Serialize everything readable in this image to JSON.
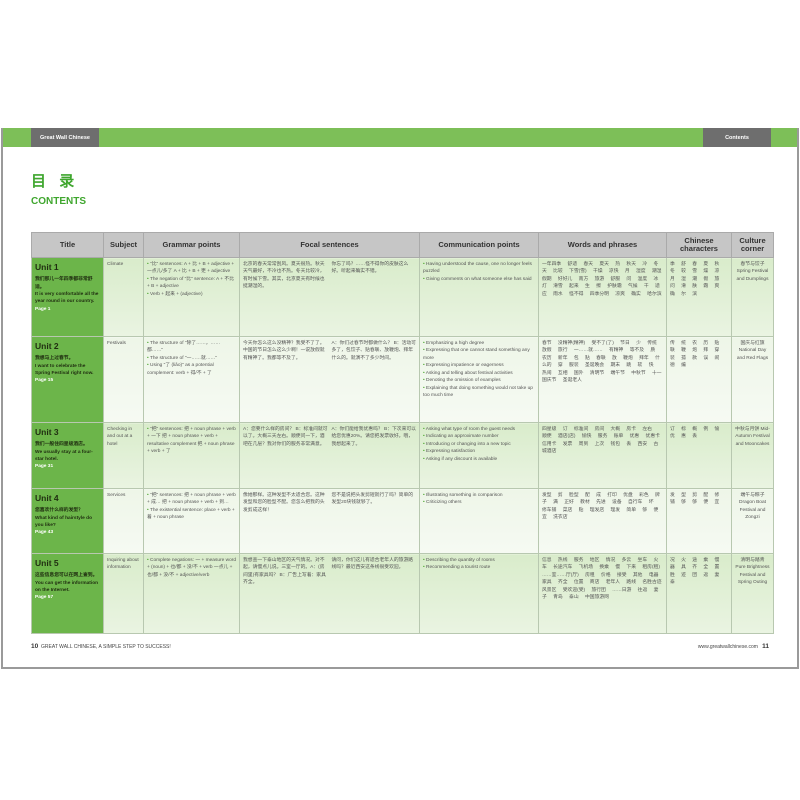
{
  "header": {
    "left_tab": "Great Wall Chinese",
    "right_tab": "Contents"
  },
  "title_cn": "目 录",
  "title_en": "CONTENTS",
  "columns": [
    "Title",
    "Subject",
    "Grammar points",
    "Focal  sentences",
    "Communication points",
    "Words and phrases",
    "Chinese characters",
    "Culture corner"
  ],
  "units": [
    {
      "unit": "Unit 1",
      "cn": "我们那儿一年四季都非常舒适。",
      "en": "It is very comfortable all the year round in our country.",
      "page": "Page 1",
      "subject": "Climate",
      "grammar": [
        "\"比\" sentences: A + 比 + B + adjective + 一点儿/多了 A + 比 + B + 更 + adjective",
        "The negation of \"比\" sentence: A + 不比 + B + adjective",
        "Verb + 起来 + (adjective)"
      ],
      "focal_a": "北京的春天常常刮风。夏天很热。秋天天气最好，不冷也不热。冬天比较冷，有时候下雪。其实，北京夏天有时候也挺潮湿的。",
      "focal_b": "你忘了吗？……怪不得你的皮肤这么好。听起来确实不错。",
      "comm": [
        "Having understood the cause, one no longer feels puzzled",
        "Giving comments on what someone else has said"
      ],
      "words": "一年四季 舒适 春天 夏天 热 秋天 冷 冬天 比较 下雪(雪) 干燥 凉快 月 湿度 潮湿 假期 好好儿 南方 旅游 舒服 问 温度 冰灯 滑雪 起来 生 擦 护肤霜 气候 干 适应 雨水 怪不得 四季分明 凉爽 确实 哈尔滨",
      "chars": "季 舒 春 夏 秋 冬 较 雪 燥 凉 月 湿 潮 假 旅 问 滑 肤 霜 爽 确 尔 滨",
      "culture": "春节与饺子 Spring Festival and Dumplings"
    },
    {
      "unit": "Unit 2",
      "cn": "我想马上过春节。",
      "en": "I want to celebrate the Spring Festival right now.",
      "page": "Page 15",
      "subject": "Festivals",
      "grammar": [
        "The structure of \"除了……，……都……\"",
        "The structure of \"一……就……\"",
        "Using \"了 (liǎo)\" as a potential complement: verb + 得/不 + 了"
      ],
      "focal_a": "今天你怎么这么没精神？我受不了了。中国的节日怎么这么少啊！一说放假就有精神了。我都等不及了。",
      "focal_b": "A：你们过春节时都做什么？ B：活动可多了，包饺子、贴春联、放鞭炮、拜年什么的。就演不了多少时间。",
      "comm": [
        "Emphasizing a high degree",
        "Expressing that one cannot stand something any more",
        "Expressing impatience or eagerness",
        "Asking and telling about festival activities",
        "Denoting the omission of examples",
        "Explaining that doing something would not take up too much time"
      ],
      "words": "春节 没精神(精神) 受不了(了) 节日 少 传统 放假 旅行 一……就…… 有精神 等不及 质 农历 新年 包 贴 春联 放 鞭炮 拜年 什么的 穿 服装 圣诞晚会 期末 跳 软 快 热闹 互相 国外 清明节 端午节 中秋节 十一国庆节 圣诞老人",
      "chars": "传 统 农 历 贴 联 鞭 炮 拜 穿 装 孤 款 误 闹 德 编",
      "culture": "国庆与红旗 National Day and Red Flags"
    },
    {
      "unit": "Unit 3",
      "cn": "我们一般住四星级酒店。",
      "en": "We usually stay at a four-star hotel.",
      "page": "Page 31",
      "subject": "Checking in and out at a hotel",
      "grammar": [
        "\"把\" sentences: 把 + noun phrase + verb + 一下 把 + noun phrase + verb + resultative complement 把 + noun phrase + verb + 了"
      ],
      "focal_a": "A：您要什么样的房间？ B：标准间就可以了。大概三天左右。顺便问一下，酒吧在几层？我对你们的服务非常满意。",
      "focal_b": "A：你们能给我优惠吗？ B：下次来可以给您优惠20%。请您把发票收好。哦，我想起来了。",
      "comm": [
        "Asking what type of room the guest needs",
        "Indicating an approximate number",
        "Introducing or changing into a new topic",
        "Expressing satisfaction",
        "Asking if any discount is available"
      ],
      "words": "四星级 订 标准间 房间 大概 房卡 左右 顺便 酒店(店) 愉快 服务 账单 优惠 优惠卡 信用卡 发票 周到 上次 钱包 丢 西安 古城酒店",
      "chars": "订 标 概 例 愉 优 惠 丢",
      "culture": "中秋与月饼 Mid-Autumn Festival and Mooncakes"
    },
    {
      "unit": "Unit 4",
      "cn": "您喜欢什么样的发型？",
      "en": "What kind of hairstyle do you like?",
      "page": "Page 43",
      "subject": "Services",
      "grammar": [
        "\"把\" sentences: 把 + noun phrase + verb + 成… 把 + noun phrase + verb + 到…",
        "The existential sentence: place + verb + 着 + noun phrase"
      ],
      "focal_a": "像她那样。这种发型不太适合您。这种发型和您的脸型不配。您怎么把我的头发剪成这样！",
      "focal_b": "您不是说把头发剪短就行了吗？简单的发型20块钱就够了。",
      "comm": [
        "Illustrating something in comparison",
        "Criticizing others"
      ],
      "words": "发型 剪 脸型 配 成 打印 优盘 彩色 牌子 满 正好 教材 先进 设备 自行车 坏 修车铺 菜店 贴 理发店 理发 简单 够 便宜 洗衣店",
      "chars": "发 型 剪 配 修 铺 够 够 便 宜",
      "culture": "端午与粽子 Dragon Boat Festival and Zongzi"
    },
    {
      "unit": "Unit 5",
      "cn": "这些信息您可以在网上查到。",
      "en": "You can get the information on the Internet.",
      "page": "Page 57",
      "subject": "Inquiring about information",
      "grammar": [
        "Complete negations: 一 + measure word + (noun) + 也/都 + 没/不 + verb 一点儿 + 也/都 + 没/不 + adjective/verb"
      ],
      "focal_a": "我想查一下泰山地区的天气情况。对不起，请慢点儿说。三室一厅的。A：(房间里)有家具吗？ B：广告上写着：家具齐全。",
      "focal_b": "请问，你们这儿有适合老年人的旅游路线吗？最近西安这条线很受欢迎。",
      "comm": [
        "Describing the quantity of rooms",
        "Recommending a tourist route"
      ],
      "words": "信息 热线 服务 地区 情况 多云 坐车 火车 长途汽车 飞机场 换乘 慢 下来 租房(租) ……室……厅(厅) 房租 价格 接受 其他 电器 家具 齐全 位置 商店 老年人 路线 名胜古迹 风景区 受欢迎(受) 旅行团 ……日游 往返 妻子 青岛 泰山 中国旅游网",
      "chars": "况 火 途 乘 慢 器 具 齐 全 置 胜 迹 团 返 妻 泰",
      "culture": "清明与踏青 Pure Brightness Festival and Spring Outing"
    }
  ],
  "footer": {
    "left_page": "10",
    "left_text": "GREAT WALL CHINESE, A SIMPLE STEP TO SUCCESS!",
    "right_url": "www.greatwallchinese.com",
    "right_page": "11"
  },
  "colors": {
    "green": "#7dbf58",
    "title_green": "#6cb54a",
    "header_gray": "#c6c6c6"
  }
}
